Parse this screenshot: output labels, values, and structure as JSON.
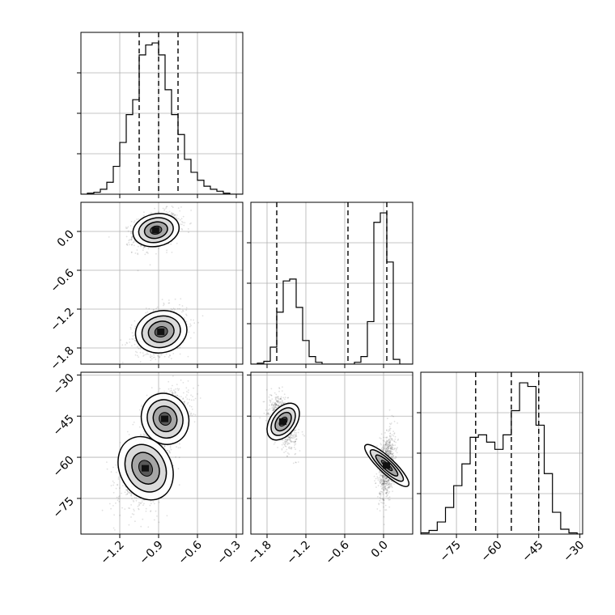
{
  "chart_data": {
    "type": "corner",
    "grid": true,
    "parameters": [
      {
        "ticks": [
          -1.2,
          -0.9,
          -0.6,
          -0.3
        ],
        "tick_labels": [
          "−1.2",
          "−0.9",
          "−0.6",
          "−0.3"
        ],
        "range": [
          -1.5,
          -0.25
        ]
      },
      {
        "ticks": [
          -1.8,
          -1.2,
          -0.6,
          0.0
        ],
        "tick_labels": [
          "−1.8",
          "−1.2",
          "−0.6",
          "0.0"
        ],
        "range": [
          -2.05,
          0.45
        ]
      },
      {
        "ticks": [
          -75,
          -60,
          -45,
          -30
        ],
        "tick_labels": [
          "−75",
          "−60",
          "−45",
          "−30"
        ],
        "range": [
          -88,
          -29
        ]
      }
    ],
    "quantiles": [
      [
        -1.05,
        -0.9,
        -0.75
      ],
      [
        -1.65,
        -0.55,
        0.05
      ],
      [
        -68,
        -55,
        -45
      ]
    ],
    "histograms": [
      {
        "bins": [
          -1.5,
          -1.45,
          -1.4,
          -1.35,
          -1.3,
          -1.25,
          -1.2,
          -1.15,
          -1.1,
          -1.05,
          -1.0,
          -0.95,
          -0.9,
          -0.85,
          -0.8,
          -0.75,
          -0.7,
          -0.65,
          -0.6,
          -0.55,
          -0.5,
          -0.45,
          -0.4,
          -0.35,
          -0.3,
          -0.25
        ],
        "counts": [
          0,
          1,
          2,
          5,
          12,
          28,
          52,
          80,
          95,
          140,
          150,
          152,
          140,
          105,
          80,
          60,
          35,
          22,
          14,
          8,
          5,
          3,
          1,
          0,
          0
        ]
      },
      {
        "bins": [
          -2.05,
          -1.95,
          -1.85,
          -1.75,
          -1.65,
          -1.55,
          -1.45,
          -1.35,
          -1.25,
          -1.15,
          -1.05,
          -0.95,
          -0.85,
          -0.75,
          -0.65,
          -0.55,
          -0.45,
          -0.35,
          -0.25,
          -0.15,
          -0.05,
          0.05,
          0.15,
          0.25,
          0.35,
          0.45
        ],
        "counts": [
          0,
          1,
          3,
          18,
          55,
          88,
          90,
          60,
          25,
          8,
          2,
          0,
          0,
          0,
          0,
          0,
          2,
          8,
          45,
          150,
          160,
          108,
          5,
          0,
          0
        ]
      },
      {
        "bins": [
          -88,
          -85,
          -82,
          -79,
          -76,
          -73,
          -70,
          -67,
          -64,
          -61,
          -58,
          -55,
          -52,
          -49,
          -46,
          -43,
          -40,
          -37,
          -34,
          -31,
          -28
        ],
        "counts": [
          1,
          3,
          10,
          22,
          40,
          58,
          80,
          82,
          76,
          70,
          82,
          102,
          125,
          122,
          90,
          50,
          18,
          4,
          1,
          0
        ]
      }
    ],
    "scatter_panels": [
      {
        "x_param": 0,
        "y_param": 1,
        "clusters": [
          {
            "cx": -0.92,
            "cy": 0.02,
            "sx": 0.09,
            "sy": 0.14,
            "rho": 0.3,
            "weight": 0.5
          },
          {
            "cx": -0.88,
            "cy": -1.55,
            "sx": 0.1,
            "sy": 0.18,
            "rho": 0.3,
            "weight": 0.5
          }
        ]
      },
      {
        "x_param": 0,
        "y_param": 2,
        "clusters": [
          {
            "cx": -0.85,
            "cy": -46,
            "sx": 0.09,
            "sy": 5.5,
            "rho": 0.4,
            "weight": 0.5
          },
          {
            "cx": -1.0,
            "cy": -64,
            "sx": 0.1,
            "sy": 7,
            "rho": 0.4,
            "weight": 0.5
          }
        ]
      },
      {
        "x_param": 1,
        "y_param": 2,
        "clusters": [
          {
            "cx": -1.55,
            "cy": -47,
            "sx": 0.1,
            "sy": 4.5,
            "rho": -0.45,
            "weight": 0.5
          },
          {
            "cx": 0.05,
            "cy": -63,
            "sx": 0.06,
            "sy": 6,
            "rho": 0.3,
            "weight": 0.5
          }
        ]
      }
    ],
    "colors": {
      "frame": "#000000",
      "grid": "#b0b0b0",
      "points": "#000000",
      "quantile_line": "#000000"
    }
  }
}
